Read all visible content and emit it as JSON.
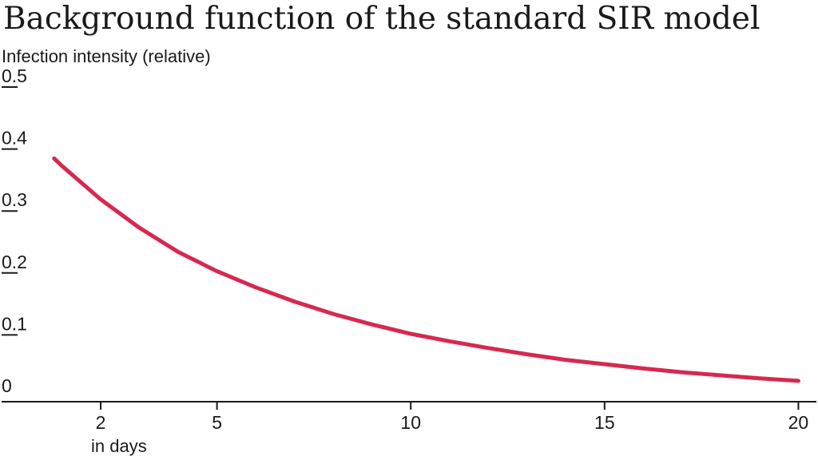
{
  "chart_data": {
    "type": "line",
    "title": "Background function of the standard SIR model",
    "ylabel": "Infection intensity (relative)",
    "xlabel": "in days",
    "xlim": [
      0,
      20.3
    ],
    "ylim": [
      0,
      0.5
    ],
    "yticks": [
      "0",
      "0.1",
      "0.2",
      "0.3",
      "0.4",
      "0.5"
    ],
    "xticks": [
      "2",
      "5",
      "10",
      "15",
      "20"
    ],
    "grid": false,
    "series": [
      {
        "color": "#d6294f",
        "x": [
          0.8,
          1,
          2,
          3,
          4,
          5,
          6,
          7,
          8,
          9,
          10,
          11,
          12,
          13,
          14,
          15,
          16,
          17,
          18,
          19,
          20
        ],
        "y": [
          0.39,
          0.378,
          0.324,
          0.278,
          0.239,
          0.208,
          0.182,
          0.159,
          0.139,
          0.122,
          0.107,
          0.095,
          0.084,
          0.074,
          0.065,
          0.058,
          0.051,
          0.045,
          0.04,
          0.035,
          0.031
        ]
      }
    ]
  }
}
